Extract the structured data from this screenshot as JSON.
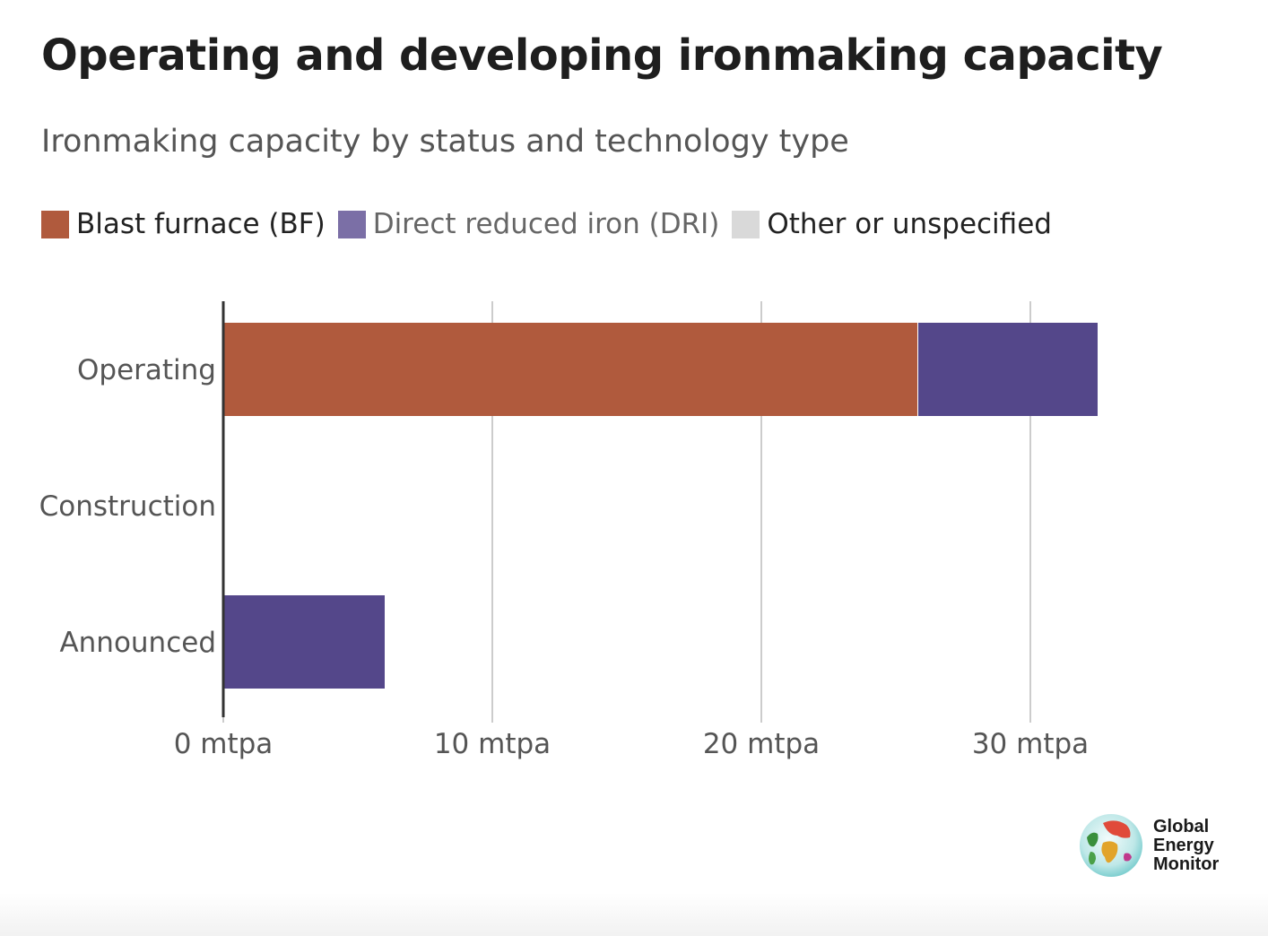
{
  "header": {
    "title": "Operating and developing ironmaking capacity",
    "subtitle": "Ironmaking capacity by status and technology type"
  },
  "legend": {
    "items": [
      {
        "label": "Blast furnace (BF)",
        "color": "#b05a3d",
        "text_color": "#222222"
      },
      {
        "label": "Direct reduced iron (DRI)",
        "color": "#7b6fa6",
        "text_color": "#666666"
      },
      {
        "label": "Other or unspecified",
        "color": "#d9d9d9",
        "text_color": "#222222"
      }
    ]
  },
  "chart_data": {
    "type": "bar",
    "orientation": "horizontal",
    "stacked": true,
    "categories": [
      "Operating",
      "Construction",
      "Announced"
    ],
    "series": [
      {
        "name": "Blast furnace (BF)",
        "color": "#b05a3d",
        "values": [
          25.8,
          0,
          0
        ]
      },
      {
        "name": "Direct reduced iron (DRI)",
        "color": "#54478a",
        "values": [
          6.7,
          0,
          6.0
        ]
      },
      {
        "name": "Other or unspecified",
        "color": "#d9d9d9",
        "values": [
          0,
          0,
          0
        ]
      }
    ],
    "xlim": [
      0,
      36
    ],
    "xticks": [
      0,
      10,
      20,
      30
    ],
    "xtick_labels": [
      "0 mtpa",
      "10 mtpa",
      "20 mtpa",
      "30 mtpa"
    ],
    "grid": "vertical",
    "legend_position": "top-left"
  },
  "logo": {
    "lines": [
      "Global",
      "Energy",
      "Monitor"
    ],
    "icon": "globe-icon"
  }
}
